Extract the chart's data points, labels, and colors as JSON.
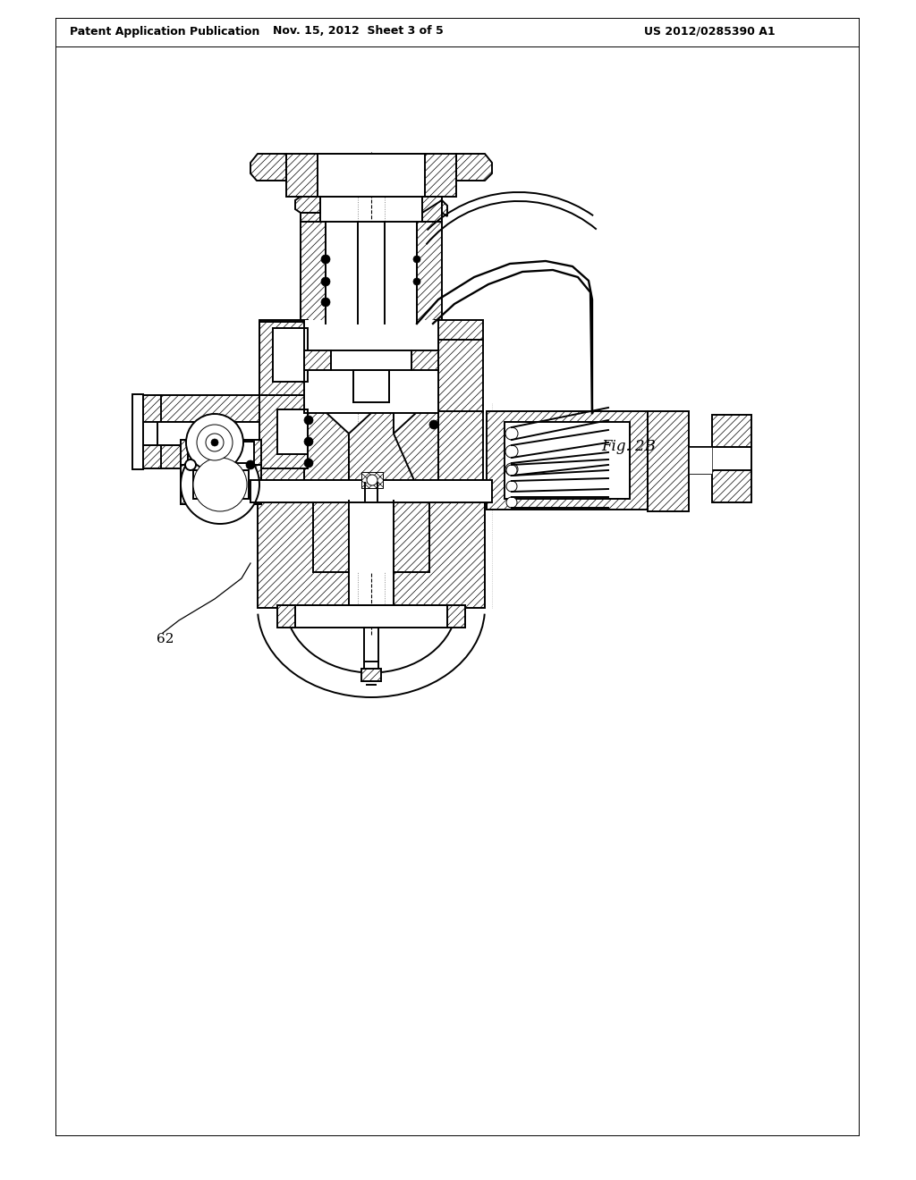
{
  "bg_color": "#ffffff",
  "lc": "#000000",
  "header_left": "Patent Application Publication",
  "header_center": "Nov. 15, 2012  Sheet 3 of 5",
  "header_right": "US 2012/0285390 A1",
  "fig_label": "Fig. 2B",
  "part_label": "62",
  "lw": 1.4,
  "lwt": 0.7,
  "figsize": [
    10.24,
    13.2
  ],
  "dpi": 100,
  "hatch_lw": 0.5
}
